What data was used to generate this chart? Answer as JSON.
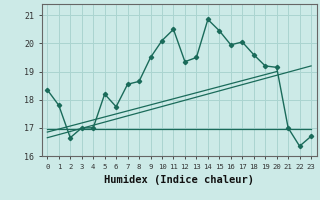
{
  "title": "",
  "xlabel": "Humidex (Indice chaleur)",
  "ylabel": "",
  "bg_color": "#cceae7",
  "grid_color": "#aad4d0",
  "line_color": "#1a6b5a",
  "x_ticks": [
    0,
    1,
    2,
    3,
    4,
    5,
    6,
    7,
    8,
    9,
    10,
    11,
    12,
    13,
    14,
    15,
    16,
    17,
    18,
    19,
    20,
    21,
    22,
    23
  ],
  "ylim": [
    16.0,
    21.4
  ],
  "xlim": [
    -0.5,
    23.5
  ],
  "yticks": [
    16,
    17,
    18,
    19,
    20,
    21
  ],
  "line1_x": [
    0,
    1,
    2,
    3,
    4,
    5,
    6,
    7,
    8,
    9,
    10,
    11,
    12,
    13,
    14,
    15,
    16,
    17,
    18,
    19,
    20,
    21,
    22,
    23
  ],
  "line1_y": [
    18.35,
    17.8,
    16.65,
    17.0,
    17.0,
    18.2,
    17.75,
    18.55,
    18.65,
    19.5,
    20.1,
    20.5,
    19.35,
    19.5,
    20.85,
    20.45,
    19.95,
    20.05,
    19.6,
    19.2,
    19.15,
    17.0,
    16.35,
    16.7
  ],
  "line2_x": [
    0,
    23
  ],
  "line2_y": [
    16.65,
    19.2
  ],
  "line3_x": [
    0,
    20
  ],
  "line3_y": [
    16.85,
    19.0
  ],
  "line4_x": [
    0,
    23
  ],
  "line4_y": [
    16.95,
    16.95
  ]
}
